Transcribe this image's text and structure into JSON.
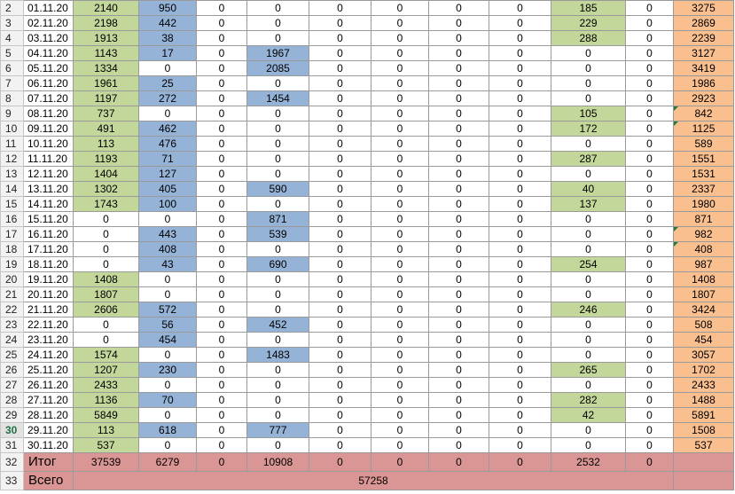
{
  "rows": [
    {
      "n": "2",
      "date": "01.11.20",
      "c": [
        "2140",
        "950",
        "0",
        "0",
        "0",
        "0",
        "0",
        "0",
        "185",
        "0",
        "3275"
      ]
    },
    {
      "n": "3",
      "date": "02.11.20",
      "c": [
        "2198",
        "442",
        "0",
        "0",
        "0",
        "0",
        "0",
        "0",
        "229",
        "0",
        "2869"
      ]
    },
    {
      "n": "4",
      "date": "03.11.20",
      "c": [
        "1913",
        "38",
        "0",
        "0",
        "0",
        "0",
        "0",
        "0",
        "288",
        "0",
        "2239"
      ]
    },
    {
      "n": "5",
      "date": "04.11.20",
      "c": [
        "1143",
        "17",
        "0",
        "1967",
        "0",
        "0",
        "0",
        "0",
        "0",
        "0",
        "3127"
      ]
    },
    {
      "n": "6",
      "date": "05.11.20",
      "c": [
        "1334",
        "0",
        "0",
        "2085",
        "0",
        "0",
        "0",
        "0",
        "0",
        "0",
        "3419"
      ]
    },
    {
      "n": "7",
      "date": "06.11.20",
      "c": [
        "1961",
        "25",
        "0",
        "0",
        "0",
        "0",
        "0",
        "0",
        "0",
        "0",
        "1986"
      ]
    },
    {
      "n": "8",
      "date": "07.11.20",
      "c": [
        "1197",
        "272",
        "0",
        "1454",
        "0",
        "0",
        "0",
        "0",
        "0",
        "0",
        "2923"
      ]
    },
    {
      "n": "9",
      "date": "08.11.20",
      "c": [
        "737",
        "0",
        "0",
        "0",
        "0",
        "0",
        "0",
        "0",
        "105",
        "0",
        "842"
      ]
    },
    {
      "n": "10",
      "date": "09.11.20",
      "c": [
        "491",
        "462",
        "0",
        "0",
        "0",
        "0",
        "0",
        "0",
        "172",
        "0",
        "1125"
      ]
    },
    {
      "n": "11",
      "date": "10.11.20",
      "c": [
        "113",
        "476",
        "0",
        "0",
        "0",
        "0",
        "0",
        "0",
        "0",
        "0",
        "589"
      ]
    },
    {
      "n": "12",
      "date": "11.11.20",
      "c": [
        "1193",
        "71",
        "0",
        "0",
        "0",
        "0",
        "0",
        "0",
        "287",
        "0",
        "1551"
      ]
    },
    {
      "n": "13",
      "date": "12.11.20",
      "c": [
        "1404",
        "127",
        "0",
        "0",
        "0",
        "0",
        "0",
        "0",
        "0",
        "0",
        "1531"
      ]
    },
    {
      "n": "14",
      "date": "13.11.20",
      "c": [
        "1302",
        "405",
        "0",
        "590",
        "0",
        "0",
        "0",
        "0",
        "40",
        "0",
        "2337"
      ]
    },
    {
      "n": "15",
      "date": "14.11.20",
      "c": [
        "1743",
        "100",
        "0",
        "0",
        "0",
        "0",
        "0",
        "0",
        "137",
        "0",
        "1980"
      ]
    },
    {
      "n": "16",
      "date": "15.11.20",
      "c": [
        "0",
        "0",
        "0",
        "871",
        "0",
        "0",
        "0",
        "0",
        "0",
        "0",
        "871"
      ]
    },
    {
      "n": "17",
      "date": "16.11.20",
      "c": [
        "0",
        "443",
        "0",
        "539",
        "0",
        "0",
        "0",
        "0",
        "0",
        "0",
        "982"
      ]
    },
    {
      "n": "18",
      "date": "17.11.20",
      "c": [
        "0",
        "408",
        "0",
        "0",
        "0",
        "0",
        "0",
        "0",
        "0",
        "0",
        "408"
      ]
    },
    {
      "n": "19",
      "date": "18.11.20",
      "c": [
        "0",
        "43",
        "0",
        "690",
        "0",
        "0",
        "0",
        "0",
        "254",
        "0",
        "987"
      ]
    },
    {
      "n": "20",
      "date": "19.11.20",
      "c": [
        "1408",
        "0",
        "0",
        "0",
        "0",
        "0",
        "0",
        "0",
        "0",
        "0",
        "1408"
      ]
    },
    {
      "n": "21",
      "date": "20.11.20",
      "c": [
        "1807",
        "0",
        "0",
        "0",
        "0",
        "0",
        "0",
        "0",
        "0",
        "0",
        "1807"
      ]
    },
    {
      "n": "22",
      "date": "21.11.20",
      "c": [
        "2606",
        "572",
        "0",
        "0",
        "0",
        "0",
        "0",
        "0",
        "246",
        "0",
        "3424"
      ]
    },
    {
      "n": "23",
      "date": "22.11.20",
      "c": [
        "0",
        "56",
        "0",
        "452",
        "0",
        "0",
        "0",
        "0",
        "0",
        "0",
        "508"
      ]
    },
    {
      "n": "24",
      "date": "23.11.20",
      "c": [
        "0",
        "454",
        "0",
        "0",
        "0",
        "0",
        "0",
        "0",
        "0",
        "0",
        "454"
      ]
    },
    {
      "n": "25",
      "date": "24.11.20",
      "c": [
        "1574",
        "0",
        "0",
        "1483",
        "0",
        "0",
        "0",
        "0",
        "0",
        "0",
        "3057"
      ]
    },
    {
      "n": "26",
      "date": "25.11.20",
      "c": [
        "1207",
        "230",
        "0",
        "0",
        "0",
        "0",
        "0",
        "0",
        "265",
        "0",
        "1702"
      ]
    },
    {
      "n": "27",
      "date": "26.11.20",
      "c": [
        "2433",
        "0",
        "0",
        "0",
        "0",
        "0",
        "0",
        "0",
        "0",
        "0",
        "2433"
      ]
    },
    {
      "n": "28",
      "date": "27.11.20",
      "c": [
        "1136",
        "70",
        "0",
        "0",
        "0",
        "0",
        "0",
        "0",
        "282",
        "0",
        "1488"
      ]
    },
    {
      "n": "29",
      "date": "28.11.20",
      "c": [
        "5849",
        "0",
        "0",
        "0",
        "0",
        "0",
        "0",
        "0",
        "42",
        "0",
        "5891"
      ]
    },
    {
      "n": "30",
      "date": "29.11.20",
      "c": [
        "113",
        "618",
        "0",
        "777",
        "0",
        "0",
        "0",
        "0",
        "0",
        "0",
        "1508"
      ]
    },
    {
      "n": "31",
      "date": "30.11.20",
      "c": [
        "537",
        "0",
        "0",
        "0",
        "0",
        "0",
        "0",
        "0",
        "0",
        "0",
        "537"
      ]
    }
  ],
  "flagged_rows": [
    "08.11.20",
    "09.11.20",
    "16.11.20",
    "17.11.20"
  ],
  "selected_row": "30",
  "total": {
    "n": "32",
    "label": "Итог",
    "c": [
      "37539",
      "6279",
      "0",
      "10908",
      "0",
      "0",
      "0",
      "0",
      "2532",
      "0",
      ""
    ]
  },
  "grand": {
    "n": "33",
    "label": "Всего",
    "value": "57258"
  },
  "colors": {
    "green": "#c4d79b",
    "blue": "#95b3d7",
    "orange": "#fabf8f",
    "pink": "#da9694"
  }
}
